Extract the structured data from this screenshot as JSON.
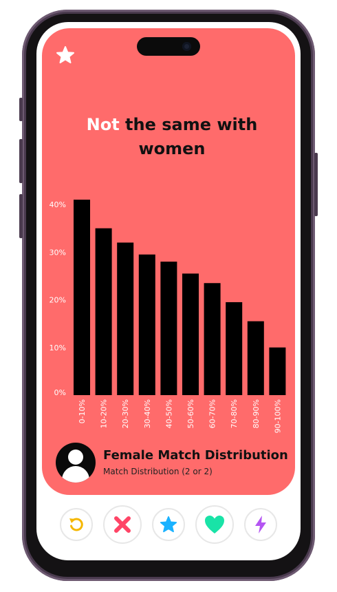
{
  "title": {
    "highlight": "Not",
    "rest": " the same with women"
  },
  "profile": {
    "name": "Female Match Distribution",
    "subtitle": "Match Distribution (2 or 2)"
  },
  "actions": [
    {
      "name": "rewind-icon",
      "color": "#f5b700"
    },
    {
      "name": "nope-icon",
      "color": "#ff4466"
    },
    {
      "name": "super-like-icon",
      "color": "#1ab2ff"
    },
    {
      "name": "like-icon",
      "color": "#19e3a7"
    },
    {
      "name": "boost-icon",
      "color": "#b455f2"
    }
  ],
  "colors": {
    "card": "#ff6b6b",
    "bar": "#000000",
    "frame": "#4a3a4e"
  },
  "chart_data": {
    "type": "bar",
    "categories": [
      "0-10%",
      "10-20%",
      "20-30%",
      "30-40%",
      "40-50%",
      "50-60%",
      "60-70%",
      "70-80%",
      "80-90%",
      "90-100%"
    ],
    "values": [
      41,
      35,
      32,
      29.5,
      28,
      25.5,
      23.5,
      19.5,
      15.5,
      10
    ],
    "yticks": [
      "0%",
      "10%",
      "20%",
      "30%",
      "40%"
    ],
    "ylim": [
      0,
      40
    ],
    "grid": false,
    "legend": "none"
  }
}
